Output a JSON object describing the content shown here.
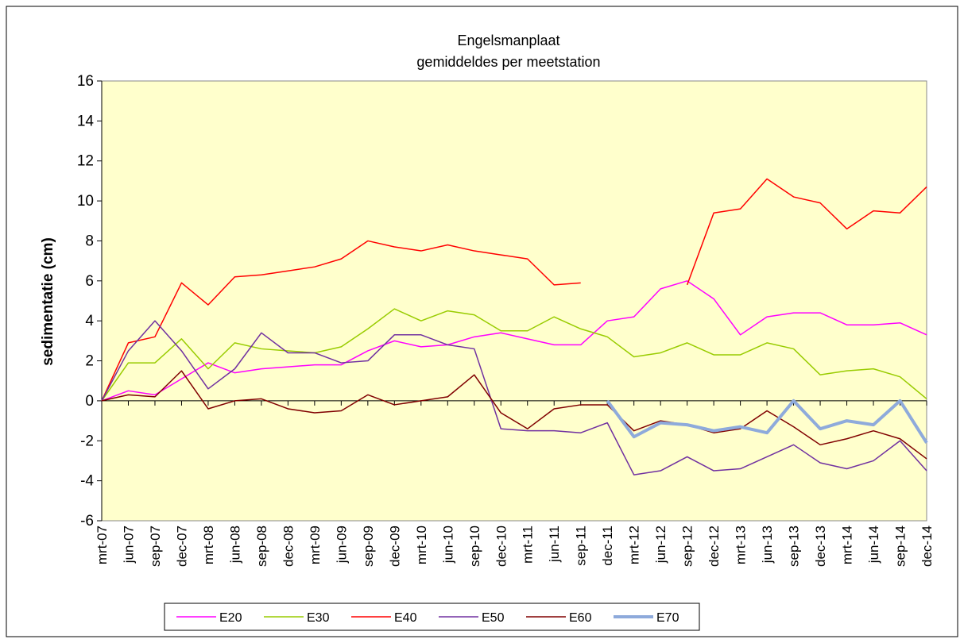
{
  "chart_data": {
    "type": "line",
    "title": "Engelsmanplaat",
    "subtitle": "gemiddeldes per meetstation",
    "y_label": "sedimentatie  (cm)",
    "categories": [
      "mrt-07",
      "jun-07",
      "sep-07",
      "dec-07",
      "mrt-08",
      "jun-08",
      "sep-08",
      "dec-08",
      "mrt-09",
      "jun-09",
      "sep-09",
      "dec-09",
      "mrt-10",
      "jun-10",
      "sep-10",
      "dec-10",
      "mrt-11",
      "jun-11",
      "sep-11",
      "dec-11",
      "mrt-12",
      "jun-12",
      "sep-12",
      "dec-12",
      "mrt-13",
      "jun-13",
      "sep-13",
      "dec-13",
      "mrt-14",
      "jun-14",
      "sep-14",
      "dec-14"
    ],
    "series": [
      {
        "name": "E20",
        "color": "#ff00ff",
        "width": 1.5,
        "values": [
          0,
          0.5,
          0.3,
          1.1,
          1.9,
          1.4,
          1.6,
          1.7,
          1.8,
          1.8,
          2.5,
          3.0,
          2.7,
          2.8,
          3.2,
          3.4,
          3.1,
          2.8,
          2.8,
          4.0,
          4.2,
          5.6,
          6.0,
          5.1,
          3.3,
          4.2,
          4.4,
          4.4,
          3.8,
          3.8,
          3.9,
          3.3
        ]
      },
      {
        "name": "E30",
        "color": "#99cc00",
        "width": 1.5,
        "values": [
          0,
          1.9,
          1.9,
          3.1,
          1.6,
          2.9,
          2.6,
          2.5,
          2.4,
          2.7,
          3.6,
          4.6,
          4.0,
          4.5,
          4.3,
          3.5,
          3.5,
          4.2,
          3.6,
          3.2,
          2.2,
          2.4,
          2.9,
          2.3,
          2.3,
          2.9,
          2.6,
          1.3,
          1.5,
          1.6,
          1.2,
          0.1
        ]
      },
      {
        "name": "E40",
        "color": "#ff0000",
        "width": 1.5,
        "values": [
          0,
          2.9,
          3.2,
          5.9,
          4.8,
          6.2,
          6.3,
          6.5,
          6.7,
          7.1,
          8.0,
          7.7,
          7.5,
          7.8,
          7.5,
          7.3,
          7.1,
          5.8,
          5.9,
          null,
          null,
          null,
          5.8,
          9.4,
          9.6,
          11.1,
          10.2,
          9.9,
          8.6,
          9.5,
          9.4,
          10.7
        ]
      },
      {
        "name": "E50",
        "color": "#7030a0",
        "width": 1.5,
        "values": [
          0,
          2.5,
          4.0,
          2.5,
          0.6,
          1.6,
          3.4,
          2.4,
          2.4,
          1.9,
          2.0,
          3.3,
          3.3,
          2.8,
          2.6,
          -1.4,
          -1.5,
          -1.5,
          -1.6,
          -1.1,
          -3.7,
          -3.5,
          -2.8,
          -3.5,
          -3.4,
          -2.8,
          -2.2,
          -3.1,
          -3.4,
          -3.0,
          -2.0,
          -3.5
        ]
      },
      {
        "name": "E60",
        "color": "#800000",
        "width": 1.5,
        "values": [
          0,
          0.3,
          0.2,
          1.5,
          -0.4,
          0.0,
          0.1,
          -0.4,
          -0.6,
          -0.5,
          0.3,
          -0.2,
          0.0,
          0.2,
          1.3,
          -0.6,
          -1.4,
          -0.4,
          -0.2,
          -0.2,
          -1.5,
          -1.0,
          -1.2,
          -1.6,
          -1.4,
          -0.5,
          -1.3,
          -2.2,
          -1.9,
          -1.5,
          -1.9,
          -2.9
        ]
      },
      {
        "name": "E70",
        "color": "#8eaadb",
        "width": 4,
        "values": [
          null,
          null,
          null,
          null,
          null,
          null,
          null,
          null,
          null,
          null,
          null,
          null,
          null,
          null,
          null,
          null,
          null,
          null,
          null,
          0.0,
          -1.8,
          -1.1,
          -1.2,
          -1.5,
          -1.3,
          -1.6,
          0.0,
          -1.4,
          -1.0,
          -1.2,
          0.0,
          -2.1
        ]
      }
    ],
    "ylim": [
      -6,
      16
    ],
    "yticks": [
      -6,
      -4,
      -2,
      0,
      2,
      4,
      6,
      8,
      10,
      12,
      14,
      16
    ],
    "background": "#ffffcc",
    "legend": "bottom"
  }
}
